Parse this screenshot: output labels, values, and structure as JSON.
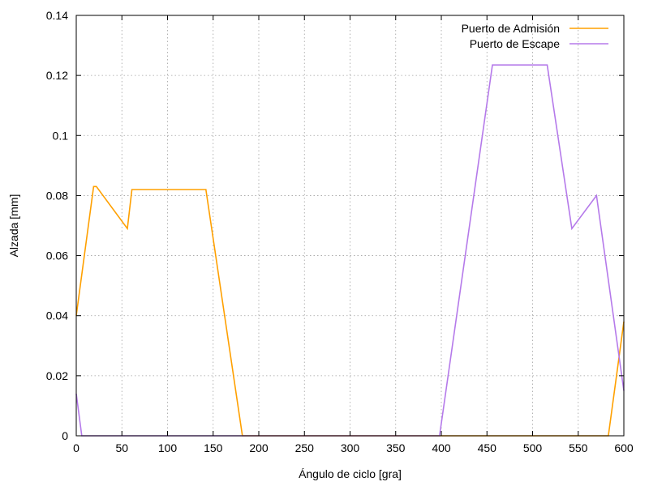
{
  "chart_data": {
    "type": "line",
    "xlabel": "Ángulo de ciclo [gra]",
    "ylabel": "Alzada [mm]",
    "xlim": [
      0,
      600
    ],
    "ylim": [
      0,
      0.14
    ],
    "xticks": [
      0,
      50,
      100,
      150,
      200,
      250,
      300,
      350,
      400,
      450,
      500,
      550,
      600
    ],
    "yticks": [
      0,
      0.02,
      0.04,
      0.06,
      0.08,
      0.1,
      0.12,
      0.14
    ],
    "xtick_labels": [
      "0",
      "50",
      "100",
      "150",
      "200",
      "250",
      "300",
      "350",
      "400",
      "450",
      "500",
      "550",
      "600"
    ],
    "ytick_labels": [
      "0",
      "0.02",
      "0.04",
      "0.06",
      "0.08",
      "0.1",
      "0.12",
      "0.14"
    ],
    "grid": true,
    "legend_position": "top-right",
    "series": [
      {
        "name": "Puerto de Admisión",
        "color": "#ffa000",
        "x": [
          0,
          19,
          22,
          56,
          61,
          142,
          182,
          583,
          600
        ],
        "y": [
          0.04,
          0.083,
          0.083,
          0.069,
          0.082,
          0.082,
          0,
          0,
          0.038
        ]
      },
      {
        "name": "Puerto de Escape",
        "color": "#b57aea",
        "x": [
          0,
          6,
          398,
          456,
          516,
          543,
          570,
          600
        ],
        "y": [
          0.014,
          0,
          0,
          0.1235,
          0.1235,
          0.069,
          0.08,
          0.015
        ]
      }
    ]
  }
}
